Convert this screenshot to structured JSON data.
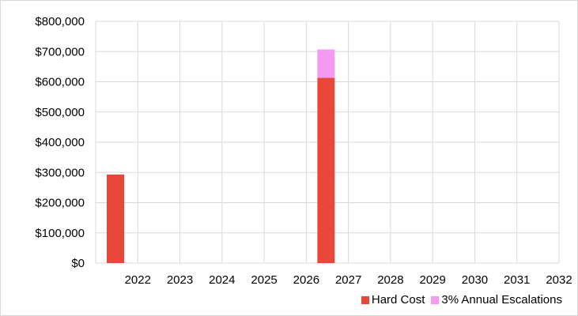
{
  "chart_data": {
    "type": "bar",
    "stacked": true,
    "categories": [
      "2022",
      "2023",
      "2024",
      "2025",
      "2026",
      "2027",
      "2028",
      "2029",
      "2030",
      "2031",
      "2032"
    ],
    "series": [
      {
        "name": "Hard Cost",
        "color": "#e8473a",
        "values": [
          293000,
          0,
          0,
          0,
          0,
          613000,
          0,
          0,
          0,
          0,
          0
        ]
      },
      {
        "name": "3% Annual Escalations",
        "color": "#f49af0",
        "values": [
          0,
          0,
          0,
          0,
          0,
          94000,
          0,
          0,
          0,
          0,
          0
        ]
      }
    ],
    "ylim": [
      0,
      800000
    ],
    "yticks": [
      {
        "value": 0,
        "label": "$0"
      },
      {
        "value": 100000,
        "label": "$100,000"
      },
      {
        "value": 200000,
        "label": "$200,000"
      },
      {
        "value": 300000,
        "label": "$300,000"
      },
      {
        "value": 400000,
        "label": "$400,000"
      },
      {
        "value": 500000,
        "label": "$500,000"
      },
      {
        "value": 600000,
        "label": "$600,000"
      },
      {
        "value": 700000,
        "label": "$700,000"
      },
      {
        "value": 800000,
        "label": "$800,000"
      }
    ],
    "grid": true,
    "legend_position": "bottom-right"
  }
}
